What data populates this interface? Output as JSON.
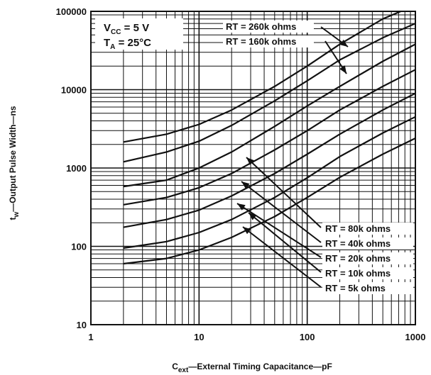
{
  "chart_data": {
    "type": "line",
    "x_scale": "log",
    "y_scale": "log",
    "xlim": [
      1,
      1000
    ],
    "ylim": [
      10,
      100000
    ],
    "x_ticks": [
      "1",
      "10",
      "100",
      "1000"
    ],
    "y_ticks": [
      "10",
      "100",
      "1000",
      "10000",
      "100000"
    ],
    "xlabel": {
      "main": "C",
      "sub": "ext",
      "rest": "—External Timing Capacitance—pF"
    },
    "ylabel": {
      "main": "t",
      "sub": "w",
      "rest": "—Output Pulse Width—ns"
    },
    "conditions": [
      {
        "main": "V",
        "sub": "CC",
        "rest": " =  5 V"
      },
      {
        "main": "T",
        "sub": "A",
        "rest": " =  25°C"
      }
    ],
    "grid": true,
    "series": [
      {
        "name": "RT = 260k ohms",
        "x": [
          2,
          5,
          10,
          20,
          50,
          100,
          200,
          500,
          1000
        ],
        "y": [
          2150,
          2700,
          3600,
          5500,
          11000,
          20000,
          38000,
          80000,
          120000
        ]
      },
      {
        "name": "RT = 160k ohms",
        "x": [
          2,
          5,
          10,
          20,
          50,
          100,
          200,
          500,
          1000
        ],
        "y": [
          1200,
          1600,
          2200,
          3500,
          7200,
          13000,
          24000,
          46000,
          70000
        ]
      },
      {
        "name": "RT = 80k ohms",
        "x": [
          2,
          5,
          10,
          20,
          50,
          100,
          200,
          500,
          1000
        ],
        "y": [
          580,
          700,
          1000,
          1600,
          3400,
          6200,
          11000,
          23000,
          38000
        ]
      },
      {
        "name": "RT = 40k ohms",
        "x": [
          2,
          5,
          10,
          20,
          50,
          100,
          200,
          500,
          1000
        ],
        "y": [
          340,
          420,
          560,
          850,
          1700,
          3000,
          5500,
          11000,
          18000
        ]
      },
      {
        "name": "RT = 20k ohms",
        "x": [
          2,
          5,
          10,
          20,
          50,
          100,
          200,
          500,
          1000
        ],
        "y": [
          175,
          220,
          290,
          440,
          850,
          1500,
          2700,
          5500,
          9000
        ]
      },
      {
        "name": "RT = 10k ohms",
        "x": [
          2,
          5,
          10,
          20,
          50,
          100,
          200,
          500,
          1000
        ],
        "y": [
          95,
          115,
          150,
          220,
          420,
          750,
          1400,
          2800,
          4500
        ]
      },
      {
        "name": "RT =  5k ohms",
        "x": [
          2,
          5,
          10,
          20,
          50,
          100,
          200,
          500,
          1000
        ],
        "y": [
          60,
          70,
          90,
          130,
          240,
          420,
          760,
          1500,
          2400
        ]
      }
    ]
  }
}
